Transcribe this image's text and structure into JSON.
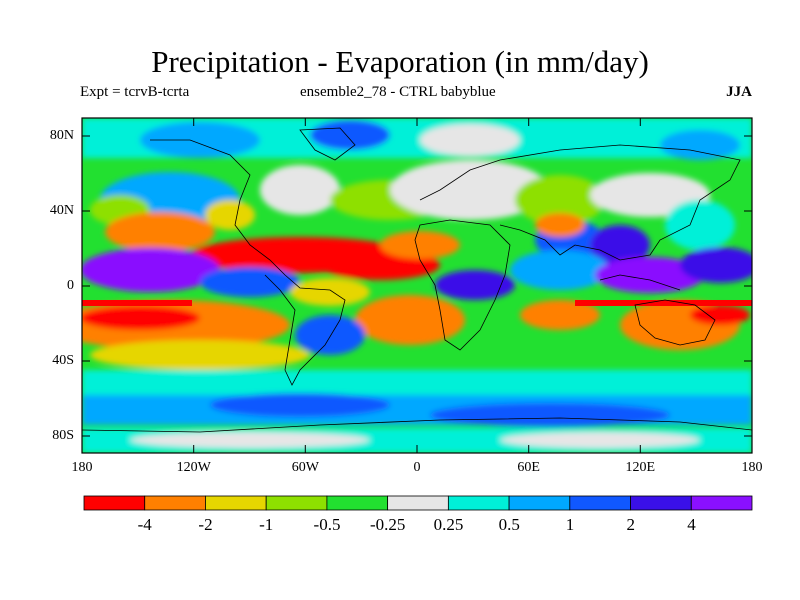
{
  "title": "Precipitation - Evaporation (in mm/day)",
  "subtitle_left": "Expt = tcrvB-tcrta",
  "subtitle_center": "ensemble2_78 - CTRL babyblue",
  "season": "JJA",
  "lat_labels": [
    "80N",
    "40N",
    "0",
    "40S",
    "80S"
  ],
  "lon_labels": [
    "180",
    "120W",
    "60W",
    "0",
    "60E",
    "120E",
    "180"
  ],
  "colorbar": {
    "labels": [
      "-4",
      "-2",
      "-1",
      "-0.5",
      "-0.25",
      "0.25",
      "0.5",
      "1",
      "2",
      "4"
    ],
    "colors": [
      "#ff0000",
      "#ff8000",
      "#e6d600",
      "#8ee000",
      "#22e030",
      "#e6e6e6",
      "#00f0d8",
      "#00a8ff",
      "#1058ff",
      "#3a10e8",
      "#8a10ff"
    ]
  }
}
